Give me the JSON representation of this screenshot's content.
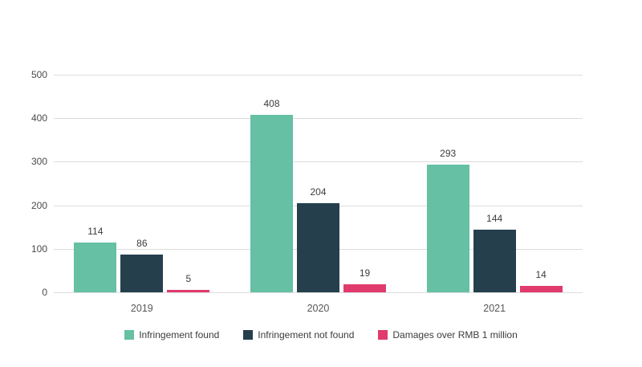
{
  "chart_data": {
    "type": "bar",
    "title": "",
    "xlabel": "",
    "ylabel": "",
    "categories": [
      "2019",
      "2020",
      "2021"
    ],
    "series": [
      {
        "name": "Infringement found",
        "color": "#65c0a4",
        "values": [
          114,
          408,
          293
        ]
      },
      {
        "name": "Infringement not found",
        "color": "#253f4d",
        "values": [
          86,
          204,
          144
        ]
      },
      {
        "name": "Damages over RMB 1 million",
        "color": "#e13a6c",
        "values": [
          5,
          19,
          14
        ]
      }
    ],
    "ylim": [
      0,
      500
    ],
    "yticks": [
      0,
      100,
      200,
      300,
      400,
      500
    ],
    "grid": true,
    "legend_position": "bottom"
  },
  "colors": {
    "background": "#ffffff",
    "gridline": "#dcdcdc",
    "axis_text": "#4a4a4a",
    "value_label_text": "#3c3c3b",
    "category_text": "#575756"
  }
}
